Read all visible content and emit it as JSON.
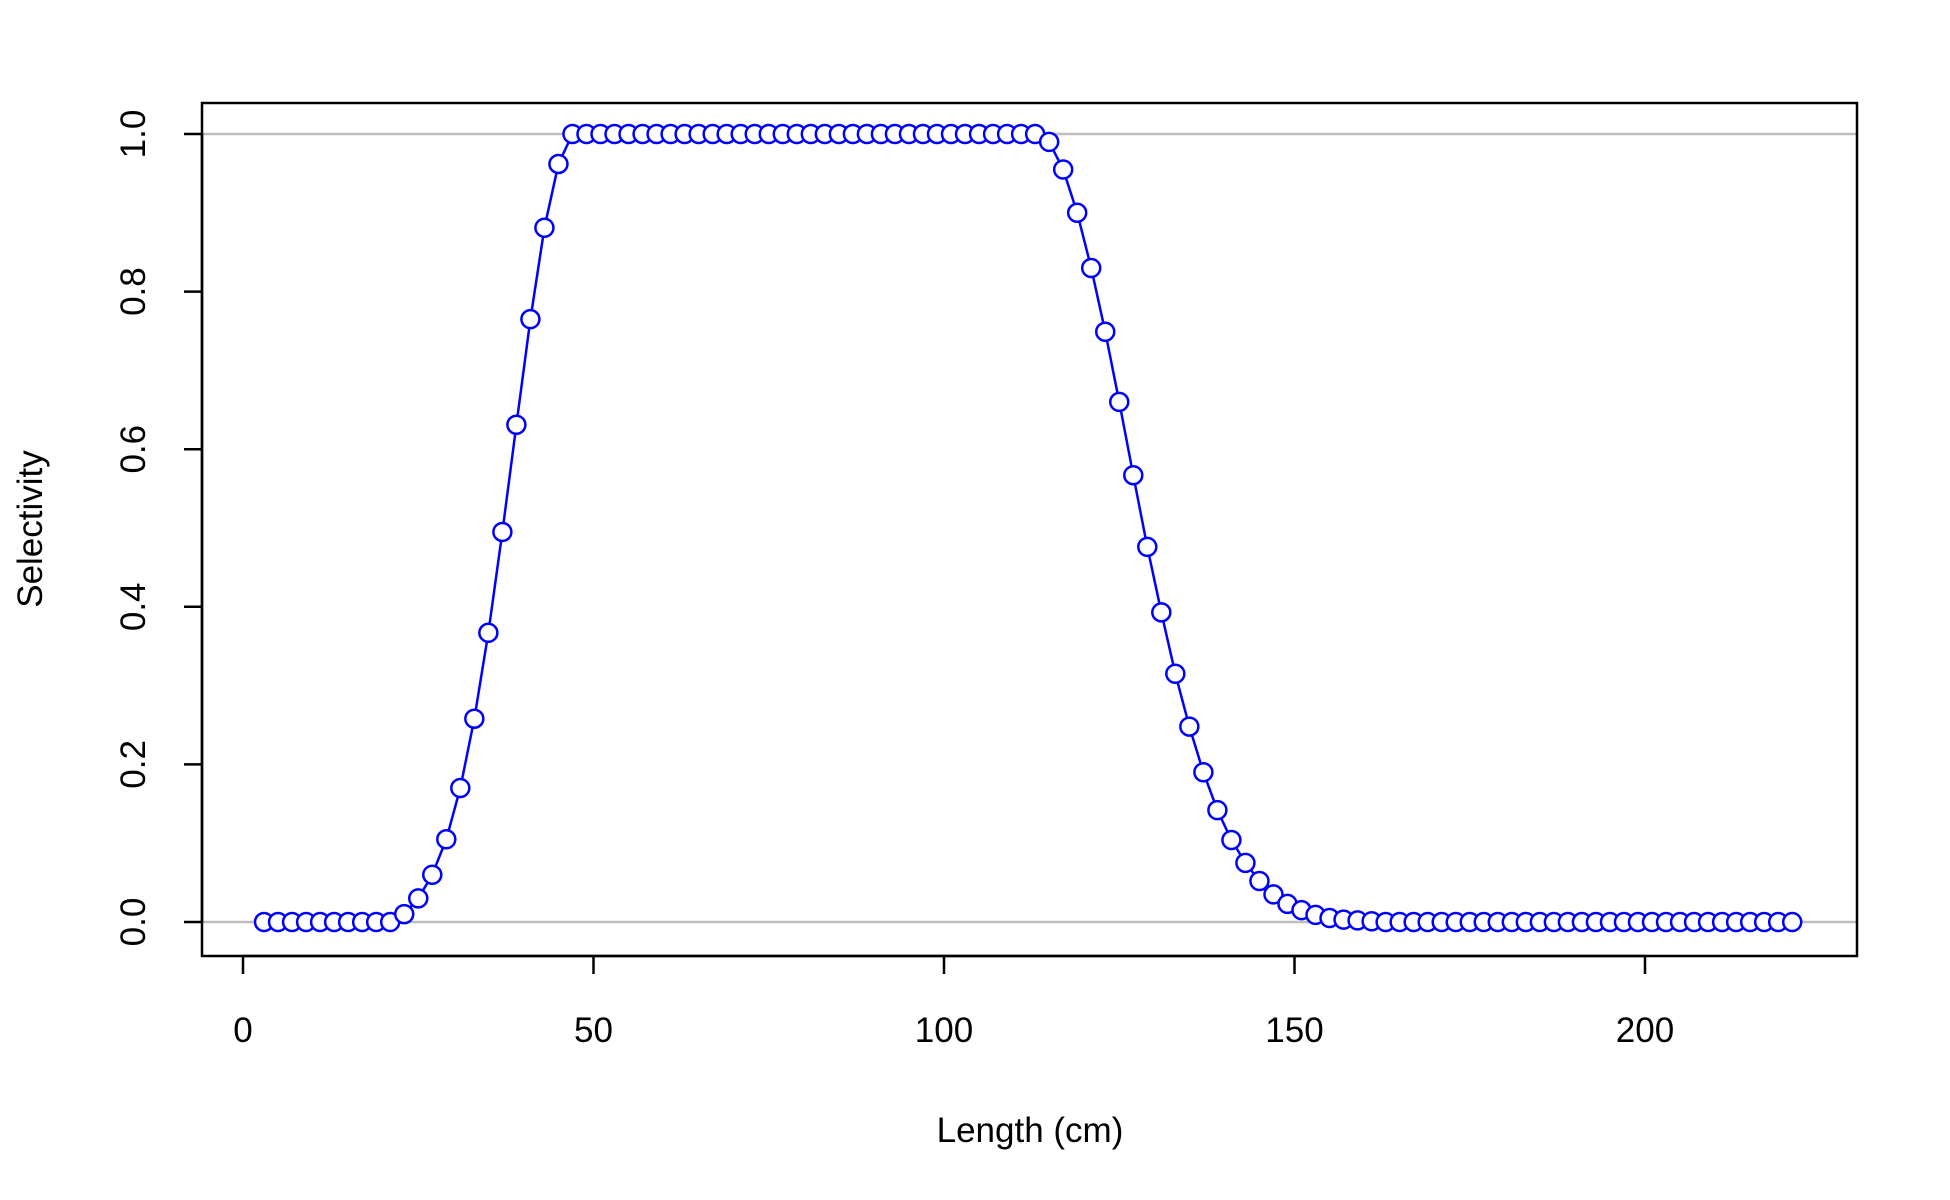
{
  "chart_data": {
    "type": "line",
    "title": "",
    "xlabel": "Length (cm)",
    "ylabel": "Selectivity",
    "xlim": [
      -3,
      232
    ],
    "ylim": [
      -0.04,
      1.04
    ],
    "xticks": [
      0,
      50,
      100,
      150,
      200
    ],
    "yticks": [
      0.0,
      0.2,
      0.4,
      0.6,
      0.8,
      1.0
    ],
    "xtick_labels": [
      "0",
      "50",
      "100",
      "150",
      "200"
    ],
    "ytick_labels": [
      "0.0",
      "0.2",
      "0.4",
      "0.6",
      "0.8",
      "1.0"
    ],
    "reference_lines_y": [
      0,
      1
    ],
    "reference_line_color": "#bebebe",
    "series": [
      {
        "color": "#0000ff",
        "marker": "open-circle",
        "x": [
          3,
          5,
          7,
          9,
          11,
          13,
          15,
          17,
          19,
          21,
          23,
          25,
          27,
          29,
          31,
          33,
          35,
          37,
          39,
          41,
          43,
          45,
          47,
          49,
          51,
          53,
          55,
          57,
          59,
          61,
          63,
          65,
          67,
          69,
          71,
          73,
          75,
          77,
          79,
          81,
          83,
          85,
          87,
          89,
          91,
          93,
          95,
          97,
          99,
          101,
          103,
          105,
          107,
          109,
          111,
          113,
          115,
          117,
          119,
          121,
          123,
          125,
          127,
          129,
          131,
          133,
          135,
          137,
          139,
          141,
          143,
          145,
          147,
          149,
          151,
          153,
          155,
          157,
          159,
          161,
          163,
          165,
          167,
          169,
          171,
          173,
          175,
          177,
          179,
          181,
          183,
          185,
          187,
          189,
          191,
          193,
          195,
          197,
          199,
          201,
          203,
          205,
          207,
          209,
          211,
          213,
          215,
          217,
          219,
          221
        ],
        "y": [
          0,
          0,
          0,
          0,
          0,
          0,
          0,
          0,
          0,
          0,
          0.01,
          0.03,
          0.06,
          0.105,
          0.17,
          0.258,
          0.367,
          0.495,
          0.631,
          0.765,
          0.881,
          0.962,
          1,
          1,
          1,
          1,
          1,
          1,
          1,
          1,
          1,
          1,
          1,
          1,
          1,
          1,
          1,
          1,
          1,
          1,
          1,
          1,
          1,
          1,
          1,
          1,
          1,
          1,
          1,
          1,
          1,
          1,
          1,
          1,
          1,
          1,
          0.99,
          0.955,
          0.9,
          0.83,
          0.749,
          0.66,
          0.567,
          0.476,
          0.393,
          0.315,
          0.248,
          0.19,
          0.142,
          0.104,
          0.075,
          0.052,
          0.035,
          0.023,
          0.015,
          0.009,
          0.005,
          0.003,
          0.002,
          0.001,
          0,
          0,
          0,
          0,
          0,
          0,
          0,
          0,
          0,
          0,
          0,
          0,
          0,
          0,
          0,
          0,
          0,
          0,
          0,
          0,
          0,
          0,
          0,
          0,
          0,
          0,
          0,
          0,
          0,
          0
        ]
      }
    ]
  }
}
